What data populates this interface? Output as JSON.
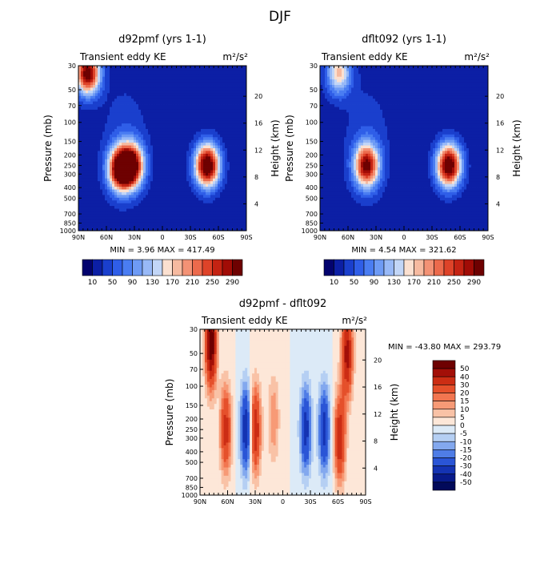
{
  "page_title": "DJF",
  "chart_data": [
    {
      "type": "heatmap",
      "title": "d92pmf (yrs 1-1)",
      "left_label": "Transient eddy KE",
      "right_label": "m²/s²",
      "xlabel": "",
      "ylabel": "Pressure (mb)",
      "y2label": "Height (km)",
      "x_ticks": [
        "90N",
        "60N",
        "30N",
        "0",
        "30S",
        "60S",
        "90S"
      ],
      "y_ticks": [
        "30",
        "50",
        "70",
        "100",
        "150",
        "200",
        "250",
        "300",
        "400",
        "500",
        "700",
        "850",
        "1000"
      ],
      "y2_ticks": [
        "4",
        "8",
        "12",
        "16",
        "20"
      ],
      "xlim": [
        90,
        -90
      ],
      "ylim": [
        1000,
        30
      ],
      "min_label": "MIN =    3.96   MAX = 417.49",
      "min": 3.96,
      "max": 417.49,
      "colorbar_ticks": [
        "10",
        "50",
        "90",
        "130",
        "170",
        "210",
        "250",
        "290"
      ],
      "colorbar_values": [
        10,
        30,
        50,
        70,
        90,
        110,
        130,
        150,
        170,
        190,
        210,
        230,
        250,
        270,
        290
      ],
      "features": [
        {
          "lat": 80,
          "p": 35,
          "value": 300
        },
        {
          "lat": 45,
          "p": 270,
          "value": 300
        },
        {
          "lat": 33,
          "p": 250,
          "value": 280
        },
        {
          "lat": -48,
          "p": 250,
          "value": 330
        }
      ]
    },
    {
      "type": "heatmap",
      "title": "dflt092 (yrs 1-1)",
      "left_label": "Transient eddy KE",
      "right_label": "m²/s²",
      "xlabel": "",
      "ylabel": "Pressure (mb)",
      "y2label": "Height (km)",
      "x_ticks": [
        "90N",
        "60N",
        "30N",
        "0",
        "30S",
        "60S",
        "90S"
      ],
      "y_ticks": [
        "30",
        "50",
        "70",
        "100",
        "150",
        "200",
        "250",
        "300",
        "400",
        "500",
        "700",
        "850",
        "1000"
      ],
      "y2_ticks": [
        "4",
        "8",
        "12",
        "16",
        "20"
      ],
      "xlim": [
        90,
        -90
      ],
      "ylim": [
        1000,
        30
      ],
      "min_label": "MIN =    4.54   MAX = 321.62",
      "min": 4.54,
      "max": 321.62,
      "colorbar_ticks": [
        "10",
        "50",
        "90",
        "130",
        "170",
        "210",
        "250",
        "290"
      ],
      "colorbar_values": [
        10,
        30,
        50,
        70,
        90,
        110,
        130,
        150,
        170,
        190,
        210,
        230,
        250,
        270,
        290
      ],
      "features": [
        {
          "lat": 70,
          "p": 35,
          "value": 160
        },
        {
          "lat": 40,
          "p": 250,
          "value": 270
        },
        {
          "lat": -48,
          "p": 250,
          "value": 320
        }
      ]
    },
    {
      "type": "heatmap",
      "title": "d92pmf - dflt092",
      "left_label": "Transient eddy KE",
      "right_label": "m²/s²",
      "xlabel": "",
      "ylabel": "Pressure (mb)",
      "y2label": "Height (km)",
      "x_ticks": [
        "90N",
        "60N",
        "30N",
        "0",
        "30S",
        "60S",
        "90S"
      ],
      "y_ticks": [
        "30",
        "50",
        "70",
        "100",
        "150",
        "200",
        "250",
        "300",
        "400",
        "500",
        "700",
        "850",
        "1000"
      ],
      "y2_ticks": [
        "4",
        "8",
        "12",
        "16",
        "20"
      ],
      "xlim": [
        90,
        -90
      ],
      "ylim": [
        1000,
        30
      ],
      "min_label": "MIN = -43.80   MAX = 293.79",
      "min": -43.8,
      "max": 293.79,
      "colorbar_ticks": [
        "50",
        "40",
        "30",
        "20",
        "15",
        "10",
        "5",
        "0",
        "-5",
        "-10",
        "-15",
        "-20",
        "-30",
        "-40",
        "-50"
      ],
      "colorbar_values": [
        50,
        40,
        30,
        20,
        15,
        10,
        5,
        0,
        -5,
        -10,
        -15,
        -20,
        -30,
        -40,
        -50
      ],
      "features": [
        {
          "lat": 78,
          "p": 40,
          "value": 60
        },
        {
          "lat": 62,
          "p": 250,
          "value": 35
        },
        {
          "lat": 40,
          "p": 250,
          "value": -40
        },
        {
          "lat": 30,
          "p": 250,
          "value": 40
        },
        {
          "lat": 10,
          "p": 200,
          "value": 15
        },
        {
          "lat": -25,
          "p": 250,
          "value": -35
        },
        {
          "lat": -45,
          "p": 250,
          "value": -35
        },
        {
          "lat": -62,
          "p": 300,
          "value": 40
        },
        {
          "lat": -70,
          "p": 50,
          "value": 45
        }
      ]
    }
  ],
  "colors": {
    "positive_scale": [
      "#03036e",
      "#0c1fa5",
      "#1a3fcd",
      "#2f5ee8",
      "#4a7df2",
      "#6e9bf5",
      "#98b9f7",
      "#c2d6f7",
      "#fbe0d0",
      "#f6baa0",
      "#f39275",
      "#ec6a4c",
      "#de4329",
      "#c42313",
      "#a10c06",
      "#6e0101"
    ],
    "diff_scale": [
      "#6e0101",
      "#a30f08",
      "#cc2d14",
      "#e5502b",
      "#f27650",
      "#f79a76",
      "#f9c2a6",
      "#fde7d8",
      "#dceaf7",
      "#b5cff3",
      "#83a8ee",
      "#4f7de6",
      "#2a55d6",
      "#1433b3",
      "#081a8a",
      "#020a5a"
    ]
  }
}
